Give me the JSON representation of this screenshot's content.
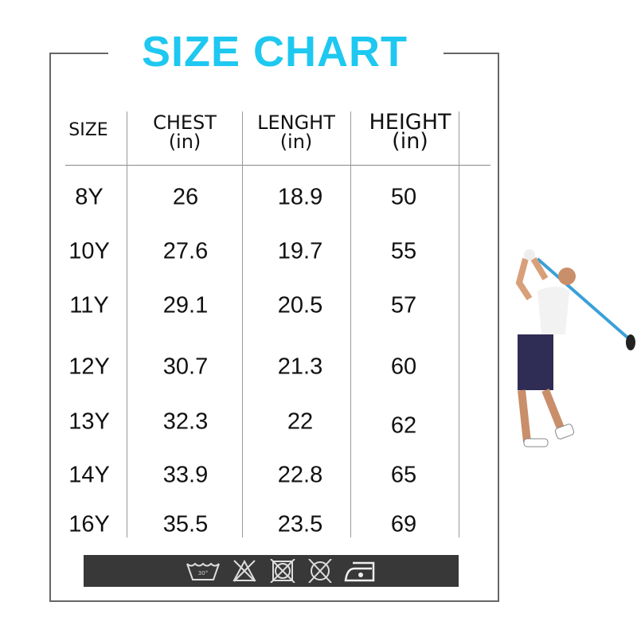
{
  "title": "SIZE CHART",
  "headers": [
    {
      "label": "SIZE",
      "unit": ""
    },
    {
      "label": "CHEST",
      "unit": "(in)"
    },
    {
      "label": "LENGHT",
      "unit": "(in)"
    },
    {
      "label": "HEIGHT",
      "unit": "(in)"
    }
  ],
  "rows": [
    [
      "8Y",
      "26",
      "18.9",
      "50"
    ],
    [
      "10Y",
      "27.6",
      "19.7",
      "55"
    ],
    [
      "11Y",
      "29.1",
      "20.5",
      "57"
    ],
    [
      "12Y",
      "30.7",
      "21.3",
      "60"
    ],
    [
      "13Y",
      "32.3",
      "22",
      "62"
    ],
    [
      "14Y",
      "33.9",
      "22.8",
      "65"
    ],
    [
      "16Y",
      "35.5",
      "23.5",
      "69"
    ]
  ],
  "care_icons": [
    "wash-30-icon",
    "no-bleach-icon",
    "no-tumble-dry-icon",
    "no-dry-clean-icon",
    "iron-low-icon"
  ],
  "colors": {
    "title": "#1ec8f0",
    "care_bar": "#383838"
  }
}
